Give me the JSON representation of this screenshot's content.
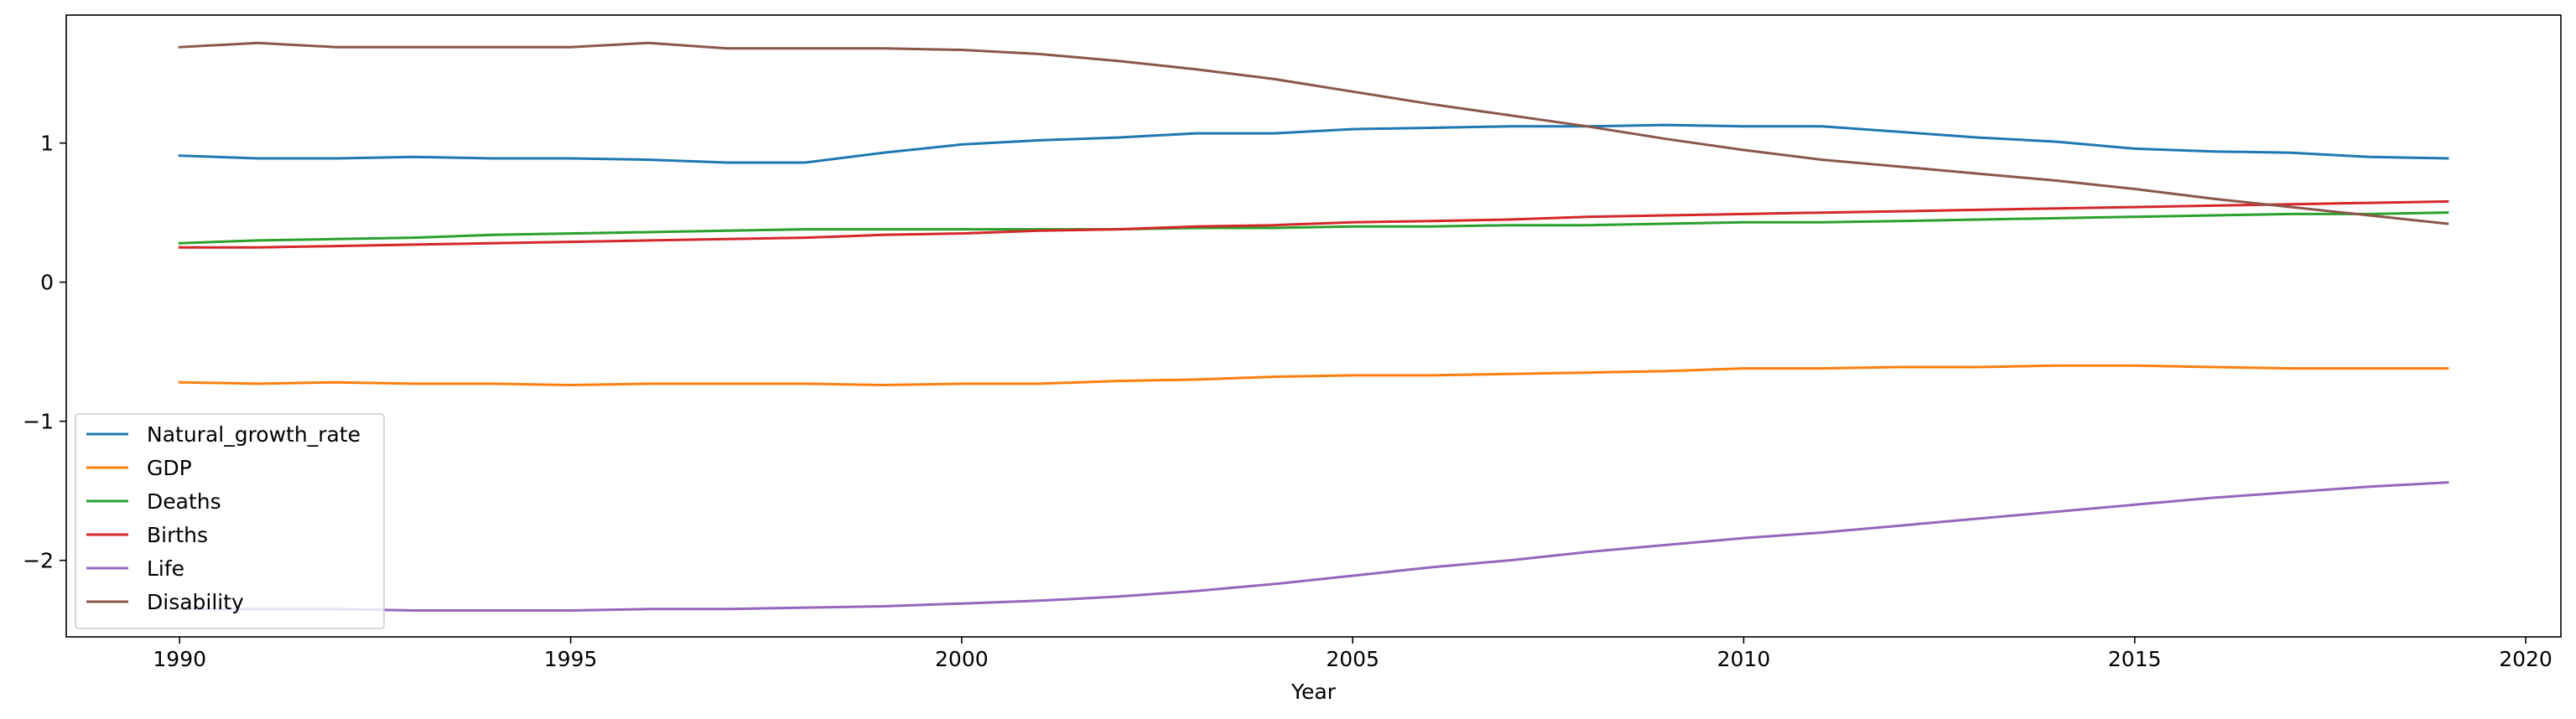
{
  "chart_data": {
    "type": "line",
    "title": "",
    "xlabel": "Year",
    "ylabel": "",
    "xlim": [
      1988.55,
      2020.45
    ],
    "ylim": [
      -2.55,
      1.92
    ],
    "x_ticks": [
      1990,
      1995,
      2000,
      2005,
      2010,
      2015,
      2020
    ],
    "y_ticks": [
      -2,
      -1,
      0,
      1
    ],
    "y_tick_labels": [
      "−2",
      "−1",
      "0",
      "1"
    ],
    "grid": false,
    "legend_position": "lower-left",
    "x": [
      1990,
      1991,
      1992,
      1993,
      1994,
      1995,
      1996,
      1997,
      1998,
      1999,
      2000,
      2001,
      2002,
      2003,
      2004,
      2005,
      2006,
      2007,
      2008,
      2009,
      2010,
      2011,
      2012,
      2013,
      2014,
      2015,
      2016,
      2017,
      2018,
      2019
    ],
    "series": [
      {
        "name": "Natural_growth_rate",
        "color": "#1f77b4",
        "values": [
          0.91,
          0.89,
          0.89,
          0.9,
          0.89,
          0.89,
          0.88,
          0.86,
          0.86,
          0.93,
          0.99,
          1.02,
          1.04,
          1.07,
          1.07,
          1.1,
          1.11,
          1.12,
          1.12,
          1.13,
          1.12,
          1.12,
          1.08,
          1.04,
          1.01,
          0.96,
          0.94,
          0.93,
          0.9,
          0.89
        ]
      },
      {
        "name": "GDP",
        "color": "#ff7f0e",
        "values": [
          -0.72,
          -0.73,
          -0.72,
          -0.73,
          -0.73,
          -0.74,
          -0.73,
          -0.73,
          -0.73,
          -0.74,
          -0.73,
          -0.73,
          -0.71,
          -0.7,
          -0.68,
          -0.67,
          -0.67,
          -0.66,
          -0.65,
          -0.64,
          -0.62,
          -0.62,
          -0.61,
          -0.61,
          -0.6,
          -0.6,
          -0.61,
          -0.62,
          -0.62,
          -0.62
        ]
      },
      {
        "name": "Deaths",
        "color": "#2ca02c",
        "values": [
          0.28,
          0.3,
          0.31,
          0.32,
          0.34,
          0.35,
          0.36,
          0.37,
          0.38,
          0.38,
          0.38,
          0.38,
          0.38,
          0.39,
          0.39,
          0.4,
          0.4,
          0.41,
          0.41,
          0.42,
          0.43,
          0.43,
          0.44,
          0.45,
          0.46,
          0.47,
          0.48,
          0.49,
          0.49,
          0.5
        ]
      },
      {
        "name": "Births",
        "color": "#d62728",
        "values": [
          0.25,
          0.25,
          0.26,
          0.27,
          0.28,
          0.29,
          0.3,
          0.31,
          0.32,
          0.34,
          0.35,
          0.37,
          0.38,
          0.4,
          0.41,
          0.43,
          0.44,
          0.45,
          0.47,
          0.48,
          0.49,
          0.5,
          0.51,
          0.52,
          0.53,
          0.54,
          0.55,
          0.56,
          0.57,
          0.58
        ]
      },
      {
        "name": "Life",
        "color": "#9467bd",
        "values": [
          -2.35,
          -2.35,
          -2.35,
          -2.36,
          -2.36,
          -2.36,
          -2.35,
          -2.35,
          -2.34,
          -2.33,
          -2.31,
          -2.29,
          -2.26,
          -2.22,
          -2.17,
          -2.11,
          -2.05,
          -2.0,
          -1.94,
          -1.89,
          -1.84,
          -1.8,
          -1.75,
          -1.7,
          -1.65,
          -1.6,
          -1.55,
          -1.51,
          -1.47,
          -1.44
        ]
      },
      {
        "name": "Disability",
        "color": "#8c564b",
        "values": [
          1.69,
          1.72,
          1.69,
          1.69,
          1.69,
          1.69,
          1.72,
          1.68,
          1.68,
          1.68,
          1.67,
          1.64,
          1.59,
          1.53,
          1.46,
          1.37,
          1.28,
          1.2,
          1.12,
          1.03,
          0.95,
          0.88,
          0.83,
          0.78,
          0.73,
          0.67,
          0.6,
          0.54,
          0.48,
          0.42
        ]
      }
    ]
  }
}
